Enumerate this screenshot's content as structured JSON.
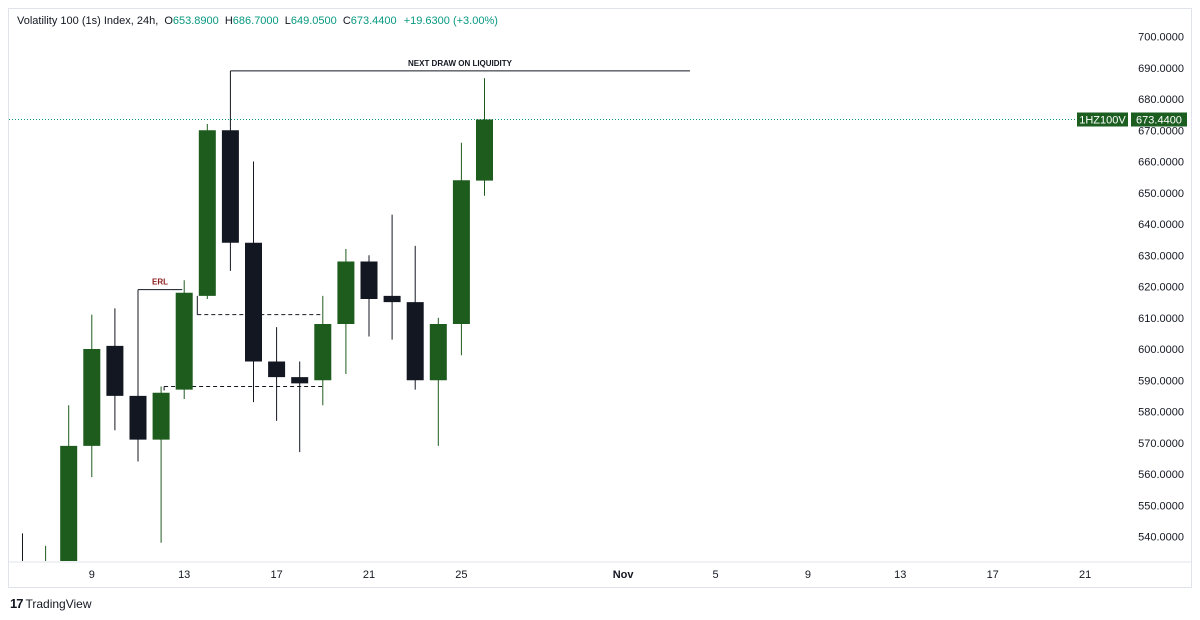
{
  "header": {
    "symbol": "Volatility 100 (1s) Index, 24h,",
    "o_label": "O",
    "o_value": "653.8900",
    "h_label": "H",
    "h_value": "686.7000",
    "l_label": "L",
    "l_value": "649.0500",
    "c_label": "C",
    "c_value": "673.4400",
    "change": "+19.6300 (+3.00%)"
  },
  "footer": {
    "brand": "TradingView",
    "logo": "17"
  },
  "price_badge": {
    "symbol": "1HZ100V",
    "price": "673.4400",
    "value": 673.44
  },
  "colors": {
    "up": "#1e5c1e",
    "down": "#131722",
    "accent": "#089981",
    "badge": "#1b5e20",
    "erl": "#8b1a1a"
  },
  "chart_data": {
    "type": "candlestick",
    "y_axis_ticks": [
      "700.0000",
      "690.0000",
      "680.0000",
      "670.0000",
      "660.0000",
      "650.0000",
      "640.0000",
      "630.0000",
      "620.0000",
      "610.0000",
      "600.0000",
      "590.0000",
      "580.0000",
      "570.0000",
      "560.0000",
      "550.0000",
      "540.0000"
    ],
    "x_axis_ticks": [
      {
        "label": "9",
        "index": 3
      },
      {
        "label": "13",
        "index": 7
      },
      {
        "label": "17",
        "index": 11
      },
      {
        "label": "21",
        "index": 15
      },
      {
        "label": "25",
        "index": 19
      },
      {
        "label": "Nov",
        "index": 26
      },
      {
        "label": "5",
        "index": 30
      },
      {
        "label": "9",
        "index": 34
      },
      {
        "label": "13",
        "index": 38
      },
      {
        "label": "17",
        "index": 42
      },
      {
        "label": "21",
        "index": 46
      }
    ],
    "candles": [
      {
        "i": 0,
        "o": 530,
        "h": 541,
        "l": 520,
        "c": 528
      },
      {
        "i": 1,
        "o": 528,
        "h": 537,
        "l": 520,
        "c": 530
      },
      {
        "i": 2,
        "o": 530,
        "h": 582,
        "l": 520,
        "c": 569
      },
      {
        "i": 3,
        "o": 569,
        "h": 611,
        "l": 559,
        "c": 600
      },
      {
        "i": 4,
        "o": 601,
        "h": 613,
        "l": 574,
        "c": 585
      },
      {
        "i": 5,
        "o": 585,
        "h": 599,
        "l": 564,
        "c": 571
      },
      {
        "i": 6,
        "o": 571,
        "h": 588,
        "l": 538,
        "c": 586
      },
      {
        "i": 7,
        "o": 587,
        "h": 622,
        "l": 584,
        "c": 618
      },
      {
        "i": 8,
        "o": 617,
        "h": 672,
        "l": 616,
        "c": 670
      },
      {
        "i": 9,
        "o": 670,
        "h": 671,
        "l": 625,
        "c": 634
      },
      {
        "i": 10,
        "o": 634,
        "h": 660,
        "l": 583,
        "c": 596
      },
      {
        "i": 11,
        "o": 596,
        "h": 607,
        "l": 577,
        "c": 591
      },
      {
        "i": 12,
        "o": 591,
        "h": 596,
        "l": 567,
        "c": 589
      },
      {
        "i": 13,
        "o": 590,
        "h": 617,
        "l": 582,
        "c": 608
      },
      {
        "i": 14,
        "o": 608,
        "h": 632,
        "l": 592,
        "c": 628
      },
      {
        "i": 15,
        "o": 628,
        "h": 630,
        "l": 604,
        "c": 616
      },
      {
        "i": 16,
        "o": 617,
        "h": 643,
        "l": 603,
        "c": 615
      },
      {
        "i": 17,
        "o": 615,
        "h": 633,
        "l": 587,
        "c": 590
      },
      {
        "i": 18,
        "o": 590,
        "h": 610,
        "l": 569,
        "c": 608
      },
      {
        "i": 19,
        "o": 608,
        "h": 666,
        "l": 598,
        "c": 654
      },
      {
        "i": 20,
        "o": 653.89,
        "h": 686.7,
        "l": 649.05,
        "c": 673.44
      }
    ],
    "annotations": {
      "next_draw_label": "NEXT DRAW ON LIQUIDITY",
      "next_draw_level": 689,
      "erl_label": "ERL",
      "erl_level": 619,
      "dashed_level_1": 611,
      "dashed_level_2": 588
    }
  }
}
